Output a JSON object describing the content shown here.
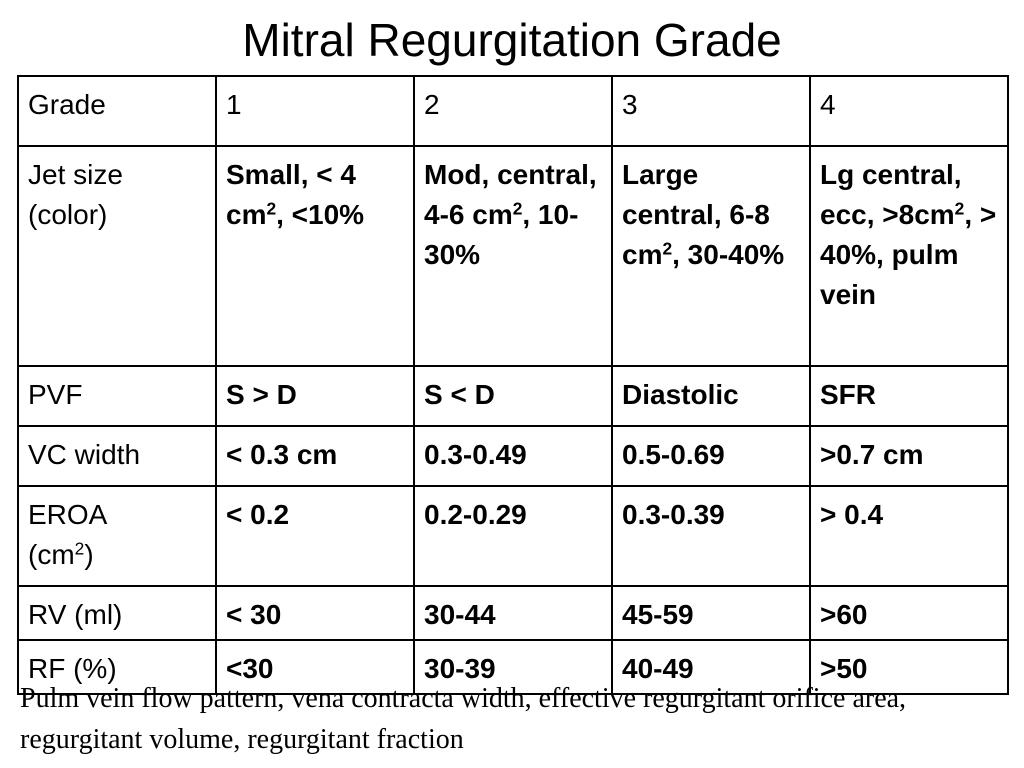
{
  "title": "Mitral Regurgitation Grade",
  "table": {
    "header": {
      "label": "Grade",
      "grades": [
        "1",
        "2",
        "3",
        "4"
      ]
    },
    "rows": [
      {
        "key": "jet",
        "label_main": "Jet size",
        "label_sub": "(color)",
        "cells": [
          {
            "pre": "Small, < 4 cm",
            "sup": "2",
            "post": ", <10%"
          },
          {
            "pre": "Mod, central, 4-6 cm",
            "sup": "2",
            "post": ", 10-30%"
          },
          {
            "pre": "Large central, 6-8 cm",
            "sup": "2",
            "post": ", 30-40%"
          },
          {
            "pre": "Lg central, ecc, >8cm",
            "sup": "2",
            "post": ", > 40%, pulm vein"
          }
        ]
      },
      {
        "key": "pvf",
        "label": "PVF",
        "cells": [
          "S > D",
          "S < D",
          "Diastolic",
          "SFR"
        ]
      },
      {
        "key": "vc",
        "label": "VC width",
        "cells": [
          "< 0.3 cm",
          "0.3-0.49",
          "0.5-0.69",
          ">0.7 cm"
        ]
      },
      {
        "key": "eroa",
        "label_main": "EROA",
        "label_sub_pre": "(cm",
        "label_sub_sup": "2",
        "label_sub_post": ")",
        "cells": [
          "< 0.2",
          "0.2-0.29",
          "0.3-0.39",
          "> 0.4"
        ]
      },
      {
        "key": "rv",
        "label": "RV (ml)",
        "cells": [
          "< 30",
          "30-44",
          "45-59",
          ">60"
        ]
      },
      {
        "key": "rf",
        "label": "RF (%)",
        "cells": [
          "<30",
          "30-39",
          "40-49",
          ">50"
        ]
      }
    ]
  },
  "footnote": "Pulm vein flow pattern, vena contracta width, effective regurgitant orifice area, regurgitant volume, regurgitant fraction"
}
